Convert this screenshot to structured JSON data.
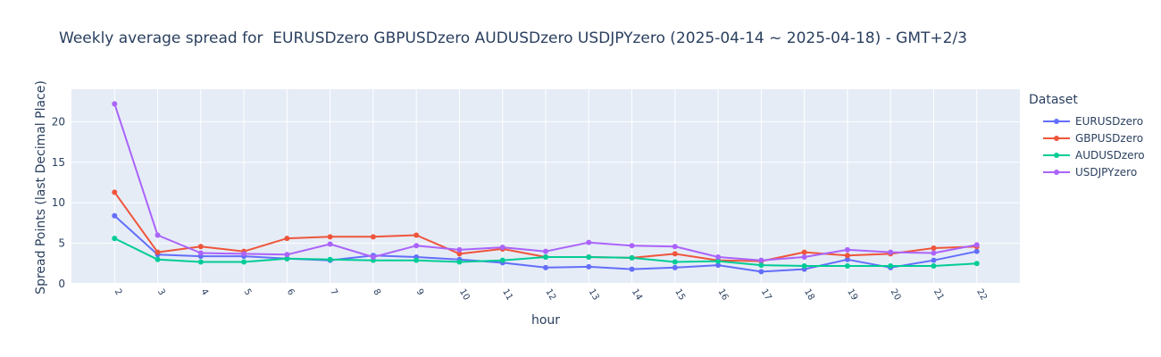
{
  "chart_data": {
    "type": "line",
    "title": "Weekly average spread for  EURUSDzero GBPUSDzero AUDUSDzero USDJPYzero (2025-04-14 ~ 2025-04-18) - GMT+2/3",
    "xlabel": "hour",
    "ylabel": "Spread Points (last Decimal Place)",
    "legend_title": "Dataset",
    "legend_position": "right",
    "grid": true,
    "background_color": "#e5ecf6",
    "x": [
      2,
      3,
      4,
      5,
      6,
      7,
      8,
      9,
      10,
      11,
      12,
      13,
      14,
      15,
      16,
      17,
      18,
      19,
      20,
      21,
      22
    ],
    "xlim": [
      1,
      23
    ],
    "ylim": [
      0,
      24
    ],
    "y_ticks": [
      0,
      5,
      10,
      15,
      20
    ],
    "series": [
      {
        "name": "EURUSDzero",
        "color": "#636efa",
        "values": [
          8.4,
          3.6,
          3.4,
          3.4,
          3.1,
          2.9,
          3.5,
          3.3,
          3.0,
          2.6,
          2.0,
          2.1,
          1.8,
          2.0,
          2.3,
          1.5,
          1.8,
          3.0,
          2.0,
          2.9,
          4.0
        ]
      },
      {
        "name": "GBPUSDzero",
        "color": "#ef553b",
        "values": [
          11.3,
          3.9,
          4.6,
          4.0,
          5.6,
          5.8,
          5.8,
          6.0,
          3.7,
          4.3,
          3.3,
          3.3,
          3.2,
          3.7,
          2.9,
          2.8,
          3.9,
          3.5,
          3.7,
          4.4,
          4.6
        ]
      },
      {
        "name": "AUDUSDzero",
        "color": "#00cc96",
        "values": [
          5.6,
          3.0,
          2.7,
          2.7,
          3.1,
          3.0,
          2.9,
          2.9,
          2.7,
          2.9,
          3.3,
          3.3,
          3.2,
          2.7,
          2.8,
          2.3,
          2.2,
          2.2,
          2.2,
          2.2,
          2.5
        ]
      },
      {
        "name": "USDJPYzero",
        "color": "#ab63fa",
        "values": [
          22.2,
          6.0,
          3.8,
          3.7,
          3.6,
          4.9,
          3.3,
          4.7,
          4.2,
          4.5,
          4.0,
          5.1,
          4.7,
          4.6,
          3.3,
          2.9,
          3.3,
          4.2,
          3.9,
          3.8,
          4.8
        ]
      }
    ]
  }
}
